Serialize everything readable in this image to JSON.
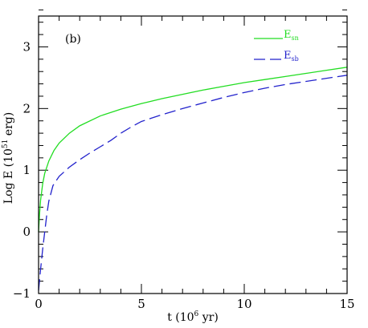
{
  "chart_data": {
    "type": "line",
    "title": "",
    "panel_label": "(b)",
    "xlabel": {
      "main": "t   (10",
      "sup": "6",
      "tail": " yr)"
    },
    "ylabel": {
      "main": "Log E   (10",
      "sup": "51",
      "tail": " erg)"
    },
    "xlim": [
      0,
      15
    ],
    "ylim": [
      -1,
      3.5
    ],
    "x_ticks": [
      0,
      5,
      10,
      15
    ],
    "y_ticks": [
      -1,
      0,
      1,
      2,
      3
    ],
    "x_tick_labels": [
      "0",
      "5",
      "10",
      "15"
    ],
    "y_tick_labels": [
      "−1",
      "0",
      "1",
      "2",
      "3"
    ],
    "legend_position": "top-right",
    "series": [
      {
        "name": "E",
        "sub": "sn",
        "color": "#22dd22",
        "dash": "solid",
        "points": [
          [
            0.0,
            0.0
          ],
          [
            0.05,
            0.3
          ],
          [
            0.1,
            0.52
          ],
          [
            0.2,
            0.78
          ],
          [
            0.3,
            0.95
          ],
          [
            0.5,
            1.15
          ],
          [
            0.75,
            1.32
          ],
          [
            1.0,
            1.44
          ],
          [
            1.5,
            1.6
          ],
          [
            2.0,
            1.72
          ],
          [
            3.0,
            1.88
          ],
          [
            4.0,
            1.99
          ],
          [
            5.0,
            2.08
          ],
          [
            6.0,
            2.16
          ],
          [
            7.0,
            2.23
          ],
          [
            8.0,
            2.3
          ],
          [
            9.0,
            2.36
          ],
          [
            10.0,
            2.42
          ],
          [
            11.0,
            2.47
          ],
          [
            12.0,
            2.52
          ],
          [
            13.0,
            2.57
          ],
          [
            14.0,
            2.62
          ],
          [
            15.0,
            2.67
          ]
        ]
      },
      {
        "name": "E",
        "sub": "sb",
        "color": "#2222cc",
        "dash": "dashed",
        "points": [
          [
            0.0,
            -0.95
          ],
          [
            0.1,
            -0.6
          ],
          [
            0.2,
            -0.28
          ],
          [
            0.3,
            0.0
          ],
          [
            0.4,
            0.28
          ],
          [
            0.5,
            0.5
          ],
          [
            0.7,
            0.75
          ],
          [
            1.0,
            0.9
          ],
          [
            1.5,
            1.05
          ],
          [
            2.0,
            1.17
          ],
          [
            2.5,
            1.28
          ],
          [
            3.0,
            1.38
          ],
          [
            3.5,
            1.48
          ],
          [
            4.0,
            1.6
          ],
          [
            4.5,
            1.7
          ],
          [
            5.0,
            1.79
          ],
          [
            6.0,
            1.9
          ],
          [
            7.0,
            2.0
          ],
          [
            8.0,
            2.09
          ],
          [
            9.0,
            2.18
          ],
          [
            10.0,
            2.26
          ],
          [
            11.0,
            2.33
          ],
          [
            12.0,
            2.39
          ],
          [
            13.0,
            2.44
          ],
          [
            14.0,
            2.49
          ],
          [
            15.0,
            2.54
          ]
        ]
      }
    ]
  }
}
